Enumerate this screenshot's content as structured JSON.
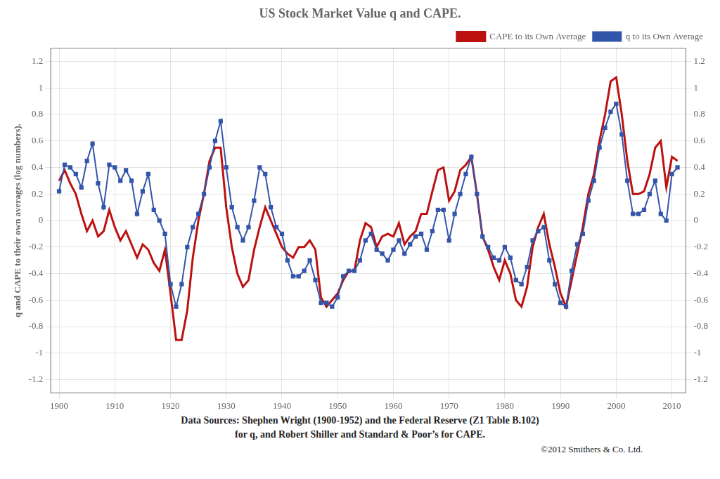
{
  "chart_data": {
    "type": "line",
    "title": "US Stock Market Value q and CAPE.",
    "y_label": "q and CAPE to their own averages (log numbers).",
    "annotations": [
      "Data Sources: Shephen Wright (1900-1952) and the Federal Reserve (Z1 Table B.102)",
      "for q, and Robert Shiller and Standard & Poor’s for CAPE.",
      "©2012  Smithers & Co. Ltd."
    ],
    "x": [
      1900,
      1901,
      1902,
      1903,
      1904,
      1905,
      1906,
      1907,
      1908,
      1909,
      1910,
      1911,
      1912,
      1913,
      1914,
      1915,
      1916,
      1917,
      1918,
      1919,
      1920,
      1921,
      1922,
      1923,
      1924,
      1925,
      1926,
      1927,
      1928,
      1929,
      1930,
      1931,
      1932,
      1933,
      1934,
      1935,
      1936,
      1937,
      1938,
      1939,
      1940,
      1941,
      1942,
      1943,
      1944,
      1945,
      1946,
      1947,
      1948,
      1949,
      1950,
      1951,
      1952,
      1953,
      1954,
      1955,
      1956,
      1957,
      1958,
      1959,
      1960,
      1961,
      1962,
      1963,
      1964,
      1965,
      1966,
      1967,
      1968,
      1969,
      1970,
      1971,
      1972,
      1973,
      1974,
      1975,
      1976,
      1977,
      1978,
      1979,
      1980,
      1981,
      1982,
      1983,
      1984,
      1985,
      1986,
      1987,
      1988,
      1989,
      1990,
      1991,
      1992,
      1993,
      1994,
      1995,
      1996,
      1997,
      1998,
      1999,
      2000,
      2001,
      2002,
      2003,
      2004,
      2005,
      2006,
      2007,
      2008,
      2009,
      2010,
      2011
    ],
    "series": [
      {
        "name": "CAPE to its Own Average",
        "color": "#BB1111",
        "marker": "none",
        "values": [
          0.3,
          0.38,
          0.28,
          0.2,
          0.05,
          -0.08,
          0.0,
          -0.12,
          -0.08,
          0.08,
          -0.05,
          -0.15,
          -0.08,
          -0.18,
          -0.28,
          -0.18,
          -0.22,
          -0.32,
          -0.38,
          -0.22,
          -0.55,
          -0.9,
          -0.9,
          -0.68,
          -0.28,
          0.0,
          0.2,
          0.45,
          0.55,
          0.55,
          0.1,
          -0.2,
          -0.4,
          -0.5,
          -0.45,
          -0.22,
          -0.05,
          0.1,
          0.0,
          -0.1,
          -0.2,
          -0.25,
          -0.28,
          -0.2,
          -0.2,
          -0.15,
          -0.22,
          -0.58,
          -0.65,
          -0.6,
          -0.55,
          -0.45,
          -0.38,
          -0.38,
          -0.15,
          -0.02,
          -0.05,
          -0.2,
          -0.12,
          -0.1,
          -0.12,
          -0.02,
          -0.18,
          -0.12,
          -0.08,
          0.05,
          0.05,
          0.22,
          0.38,
          0.4,
          0.15,
          0.22,
          0.38,
          0.42,
          0.48,
          0.2,
          -0.12,
          -0.22,
          -0.35,
          -0.45,
          -0.3,
          -0.4,
          -0.6,
          -0.65,
          -0.5,
          -0.2,
          -0.05,
          0.05,
          -0.18,
          -0.35,
          -0.55,
          -0.65,
          -0.45,
          -0.25,
          -0.05,
          0.2,
          0.35,
          0.6,
          0.8,
          1.05,
          1.08,
          0.8,
          0.45,
          0.2,
          0.2,
          0.22,
          0.35,
          0.55,
          0.6,
          0.25,
          0.48,
          0.45
        ]
      },
      {
        "name": "q to its Own Average",
        "color": "#3355AA",
        "marker": "square",
        "values": [
          0.22,
          0.42,
          0.4,
          0.35,
          0.25,
          0.45,
          0.58,
          0.28,
          0.1,
          0.42,
          0.4,
          0.3,
          0.38,
          0.3,
          0.05,
          0.22,
          0.35,
          0.08,
          0.0,
          -0.1,
          -0.48,
          -0.65,
          -0.48,
          -0.2,
          -0.05,
          0.05,
          0.2,
          0.4,
          0.6,
          0.75,
          0.4,
          0.1,
          -0.05,
          -0.15,
          -0.05,
          0.15,
          0.4,
          0.35,
          0.1,
          -0.05,
          -0.1,
          -0.3,
          -0.42,
          -0.42,
          -0.38,
          -0.3,
          -0.45,
          -0.62,
          -0.62,
          -0.65,
          -0.58,
          -0.42,
          -0.38,
          -0.38,
          -0.3,
          -0.15,
          -0.1,
          -0.22,
          -0.25,
          -0.3,
          -0.22,
          -0.15,
          -0.25,
          -0.18,
          -0.12,
          -0.1,
          -0.22,
          -0.08,
          0.08,
          0.08,
          -0.15,
          0.05,
          0.2,
          0.35,
          0.48,
          0.2,
          -0.12,
          -0.2,
          -0.28,
          -0.3,
          -0.2,
          -0.28,
          -0.45,
          -0.48,
          -0.35,
          -0.15,
          -0.08,
          -0.05,
          -0.3,
          -0.48,
          -0.62,
          -0.65,
          -0.38,
          -0.18,
          -0.1,
          0.15,
          0.3,
          0.55,
          0.7,
          0.82,
          0.88,
          0.65,
          0.3,
          0.05,
          0.05,
          0.08,
          0.2,
          0.3,
          0.05,
          0.0,
          0.35,
          0.4
        ]
      }
    ],
    "xlim": [
      1898.5,
      2012.5
    ],
    "xticks": [
      1900,
      1910,
      1920,
      1930,
      1940,
      1950,
      1960,
      1970,
      1980,
      1990,
      2000,
      2010
    ],
    "ylim": [
      -1.3,
      1.3
    ],
    "yticks": [
      -1.2,
      -1,
      -0.8,
      -0.6,
      -0.4,
      -0.2,
      0,
      0.2,
      0.4,
      0.6,
      0.8,
      1,
      1.2
    ],
    "y2lim": [
      -1.3,
      1.3
    ],
    "y2ticks": [
      -1.2,
      -1,
      -0.8,
      -0.6,
      -0.4,
      -0.2,
      0,
      0.2,
      0.4,
      0.6,
      0.8,
      1,
      1.2
    ],
    "grid": true,
    "legend": "upper right"
  }
}
